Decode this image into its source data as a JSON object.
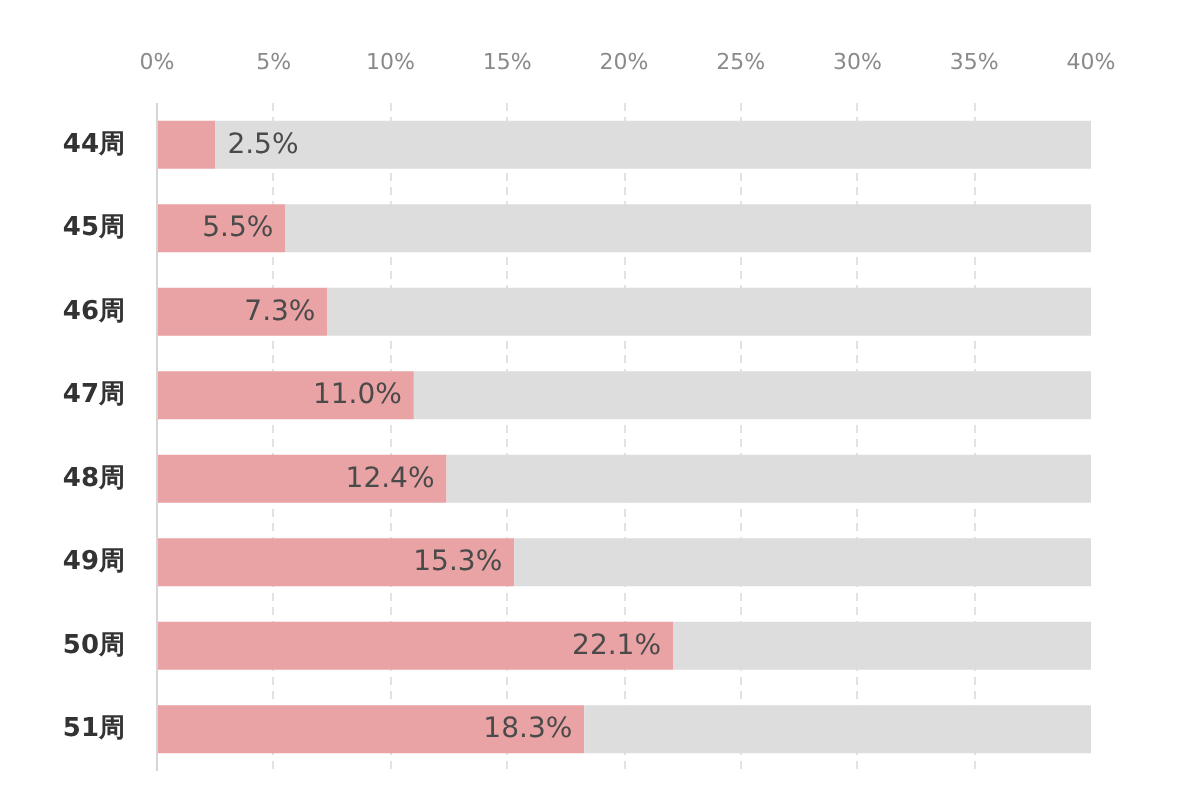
{
  "chart_data": {
    "type": "bar",
    "orientation": "horizontal",
    "stacked": true,
    "categories": [
      "44周",
      "45周",
      "46周",
      "47周",
      "48周",
      "49周",
      "50周",
      "51周"
    ],
    "series": [
      {
        "color": "#e9a3a5",
        "values": [
          2.5,
          5.5,
          7.3,
          11.0,
          12.4,
          15.3,
          22.1,
          18.3
        ],
        "value_labels": [
          "2.5%",
          "5.5%",
          "7.3%",
          "11.0%",
          "12.4%",
          "15.3%",
          "22.1%",
          "18.3%"
        ]
      },
      {
        "color": "#dddddd",
        "values": [
          37.5,
          34.5,
          32.7,
          29.0,
          27.6,
          24.7,
          17.9,
          21.7
        ]
      }
    ],
    "xlim": [
      0,
      40
    ],
    "xticks": [
      {
        "value": 0,
        "label": "0%"
      },
      {
        "value": 5,
        "label": "5%"
      },
      {
        "value": 10,
        "label": "10%"
      },
      {
        "value": 15,
        "label": "15%"
      },
      {
        "value": 20,
        "label": "20%"
      },
      {
        "value": 25,
        "label": "25%"
      },
      {
        "value": 30,
        "label": "30%"
      },
      {
        "value": 35,
        "label": "35%"
      },
      {
        "value": 40,
        "label": "40%"
      }
    ],
    "grid": "x"
  }
}
